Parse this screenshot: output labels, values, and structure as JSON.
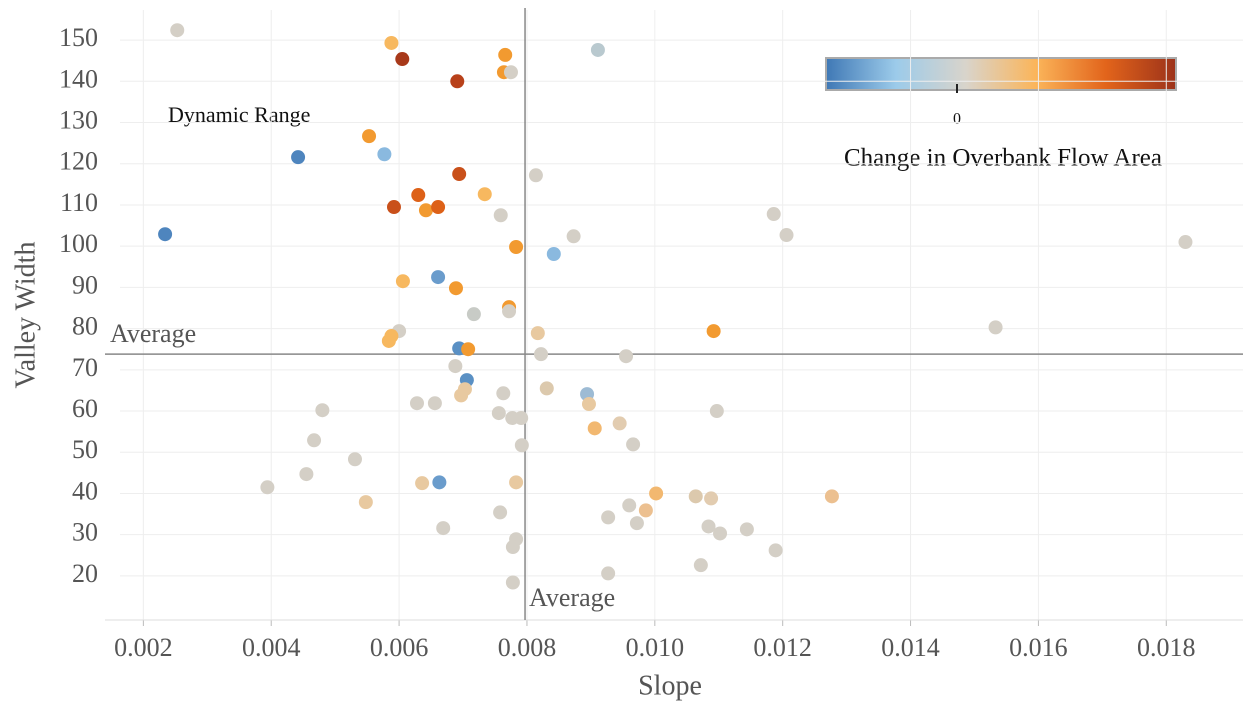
{
  "chart_data": {
    "type": "scatter",
    "x_label": "Slope",
    "y_label": "Valley Width",
    "xlim": [
      0.0014,
      0.0192
    ],
    "ylim": [
      9.3,
      157.3
    ],
    "xticks": [
      0.002,
      0.004,
      0.006,
      0.008,
      {
        "value": 0.01,
        "label": "0.010"
      },
      0.012,
      0.014,
      0.016,
      0.018
    ],
    "yticks": [
      20,
      30,
      40,
      50,
      60,
      70,
      80,
      90,
      100,
      110,
      120,
      130,
      140,
      150
    ],
    "grid": true,
    "x_average": {
      "value": 0.00797,
      "label": "Average"
    },
    "y_average": {
      "value": 73.8,
      "label": "Average"
    },
    "annotation": "Dynamic Range",
    "colorbar": {
      "title": "Change in Overbank Flow Area",
      "ticks": [
        0
      ],
      "colors": [
        "#3f78b5",
        "#9ccbea",
        "#d9d4cb",
        "#fbb55a",
        "#e2641b",
        "#9c321a"
      ]
    },
    "x": [
      0.00253,
      0.00588,
      0.00605,
      0.00766,
      0.00911,
      0.00691,
      0.00764,
      0.00775,
      0.00553,
      0.00442,
      0.00577,
      0.00694,
      0.00814,
      0.00734,
      0.0063,
      0.00592,
      0.00642,
      0.00661,
      0.00759,
      0.00234,
      0.00783,
      0.00842,
      0.00873,
      0.01186,
      0.01206,
      0.0183,
      0.00661,
      0.00606,
      0.00689,
      0.00772,
      0.00717,
      0.00772,
      0.006,
      0.00588,
      0.00584,
      0.00817,
      0.01092,
      0.01533,
      0.00694,
      0.00708,
      0.00822,
      0.00955,
      0.00688,
      0.00706,
      0.00703,
      0.00697,
      0.00763,
      0.00831,
      0.00894,
      0.00897,
      0.00628,
      0.00656,
      0.0048,
      0.00756,
      0.00777,
      0.00791,
      0.01097,
      0.00945,
      0.00906,
      0.00467,
      0.00966,
      0.00792,
      0.00531,
      0.00455,
      0.00394,
      0.00636,
      0.00663,
      0.00783,
      0.00548,
      0.01002,
      0.0096,
      0.00986,
      0.01064,
      0.01088,
      0.01277,
      0.00758,
      0.00927,
      0.00972,
      0.00669,
      0.01084,
      0.01102,
      0.01144,
      0.00783,
      0.00778,
      0.01189,
      0.01072,
      0.00927,
      0.00778
    ],
    "values": [
      152.4,
      149.3,
      145.4,
      146.4,
      147.6,
      140.0,
      142.2,
      142.2,
      126.7,
      121.6,
      122.3,
      117.5,
      117.2,
      112.6,
      112.4,
      109.5,
      108.7,
      109.5,
      107.5,
      102.9,
      99.8,
      98.1,
      102.4,
      107.8,
      102.7,
      101.0,
      92.5,
      91.5,
      89.8,
      85.2,
      83.5,
      84.2,
      79.4,
      78.2,
      77.0,
      78.9,
      79.4,
      80.3,
      75.2,
      75.0,
      73.8,
      73.3,
      70.9,
      67.5,
      65.3,
      63.8,
      64.3,
      65.5,
      64.1,
      61.7,
      61.9,
      61.9,
      60.2,
      59.5,
      58.3,
      58.3,
      60.0,
      57.0,
      55.8,
      52.9,
      51.9,
      51.7,
      48.3,
      44.7,
      41.5,
      42.5,
      42.7,
      42.7,
      37.9,
      40.0,
      37.1,
      35.9,
      39.3,
      38.8,
      39.3,
      35.4,
      34.2,
      32.8,
      31.6,
      32.0,
      30.3,
      31.3,
      28.9,
      27.0,
      26.2,
      22.6,
      20.6,
      18.4
    ],
    "colors": [
      "#d4cfc6",
      "#f7b85f",
      "#a8391a",
      "#f29a30",
      "#b9c9cf",
      "#b8411a",
      "#f29a30",
      "#d4cfc6",
      "#f29a30",
      "#4e85be",
      "#8ab9df",
      "#c9501a",
      "#d4cfc6",
      "#f7b85f",
      "#dd6118",
      "#c9501a",
      "#f29a30",
      "#dd6118",
      "#d4cfc6",
      "#4e85be",
      "#f29a30",
      "#8ab9df",
      "#d4cfc6",
      "#d4cfc6",
      "#d4cfc6",
      "#d4cfc6",
      "#6a9ccc",
      "#f7b85f",
      "#f29a30",
      "#f29a30",
      "#c8cbc6",
      "#d4cfc6",
      "#d4cfc6",
      "#f7b85f",
      "#f7b85f",
      "#e8c9a0",
      "#f29a30",
      "#d4cfc6",
      "#5a90c4",
      "#f29a30",
      "#d4cfc6",
      "#d4cfc6",
      "#d4cfc6",
      "#5a90c4",
      "#e8c9a0",
      "#e8c9a0",
      "#d4cfc6",
      "#dcc9ad",
      "#9dbbd4",
      "#e8c9a0",
      "#d4cfc6",
      "#d4cfc6",
      "#d4cfc6",
      "#d4cfc6",
      "#d4cfc6",
      "#d4cfc6",
      "#d4cfc6",
      "#e2ccb0",
      "#f2b870",
      "#d4cfc6",
      "#d4cfc6",
      "#d4cfc6",
      "#d4cfc6",
      "#d4cfc6",
      "#d4cfc6",
      "#e8c9a0",
      "#6a9ccc",
      "#e8c9a0",
      "#e8c9a0",
      "#f2b870",
      "#d4cfc6",
      "#ecc090",
      "#dcc9ad",
      "#e2ccb0",
      "#ecc090",
      "#d4cfc6",
      "#d4cfc6",
      "#d4cfc6",
      "#d4cfc6",
      "#d4cfc6",
      "#d4cfc6",
      "#d4cfc6",
      "#d4cfc6",
      "#d4cfc6",
      "#d4cfc6",
      "#d4cfc6",
      "#d4cfc6",
      "#d4cfc6"
    ]
  }
}
